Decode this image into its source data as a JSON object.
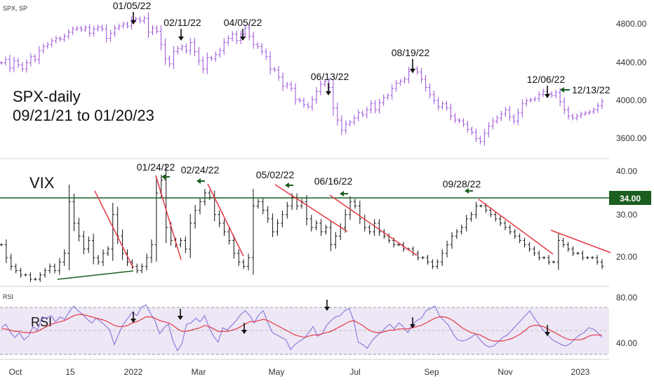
{
  "chart_data": [
    {
      "type": "line",
      "panel": "spx",
      "symbol_tag": "SPX, SP",
      "title_lines": [
        "SPX-daily",
        "09/21/21 to 01/20/23"
      ],
      "y_ticks": [
        "4800.00",
        "4400.00",
        "4000.00",
        "3600.00"
      ],
      "ylim": [
        3450,
        4920
      ],
      "color": "#9c4fd8",
      "series": [
        {
          "values": [
            4360,
            4395,
            4310,
            4380,
            4340,
            4300,
            4360,
            4420,
            4390,
            4480,
            4520,
            4540,
            4575,
            4600,
            4590,
            4620,
            4660,
            4690,
            4700,
            4685,
            4705,
            4650,
            4690,
            4710,
            4690,
            4600,
            4650,
            4700,
            4720,
            4740,
            4720,
            4780,
            4790,
            4770,
            4795,
            4660,
            4700,
            4670,
            4540,
            4400,
            4350,
            4470,
            4500,
            4520,
            4480,
            4560,
            4470,
            4380,
            4300,
            4410,
            4400,
            4440,
            4480,
            4560,
            4600,
            4640,
            4580,
            4640,
            4700,
            4620,
            4540,
            4520,
            4470,
            4420,
            4300,
            4290,
            4220,
            4130,
            4150,
            4110,
            4000,
            3990,
            3950,
            3930,
            4000,
            4080,
            4150,
            4180,
            4120,
            3920,
            3800,
            3700,
            3760,
            3780,
            3820,
            3870,
            3850,
            3900,
            3960,
            3900,
            3970,
            4020,
            4040,
            4110,
            4160,
            4180,
            4200,
            4280,
            4300,
            4270,
            4200,
            4120,
            4050,
            3990,
            3930,
            3960,
            3920,
            3840,
            3800,
            3790,
            3760,
            3710,
            3680,
            3620,
            3590,
            3670,
            3740,
            3790,
            3820,
            3860,
            3900,
            3830,
            3790,
            3870,
            3960,
            3990,
            4000,
            4010,
            4050,
            4080,
            4060,
            4040,
            4070,
            3980,
            3900,
            3840,
            3820,
            3840,
            3860,
            3870,
            3880,
            3900,
            3940,
            3980
          ]
        }
      ]
    },
    {
      "type": "line",
      "panel": "vix",
      "label": "VIX",
      "y_ticks": [
        "40.00",
        "30.00",
        "20.00"
      ],
      "ylim": [
        15,
        43
      ],
      "color": "#111111",
      "reference_line": {
        "value": 34.0,
        "label": "34.00",
        "color": "#1b5e20"
      },
      "series": [
        {
          "values": [
            24,
            21,
            19,
            18,
            17,
            17,
            16,
            16,
            17,
            18,
            19,
            18,
            20,
            22,
            34,
            29,
            26,
            23,
            25,
            21,
            20,
            22,
            23,
            31,
            26,
            22,
            20,
            19,
            18,
            19,
            21,
            24,
            36,
            39,
            28,
            25,
            24,
            25,
            23,
            29,
            32,
            34,
            36,
            35,
            31,
            29,
            27,
            25,
            22,
            20,
            19,
            21,
            33,
            34,
            32,
            30,
            27,
            29,
            31,
            33,
            35,
            33,
            34,
            30,
            28,
            29,
            27,
            28,
            24,
            26,
            28,
            31,
            34,
            33,
            30,
            28,
            27,
            29,
            27,
            26,
            25,
            24,
            24,
            23,
            23,
            22,
            21,
            21,
            20,
            19,
            20,
            22,
            24,
            26,
            27,
            28,
            30,
            31,
            33,
            33,
            32,
            31,
            30,
            29,
            28,
            27,
            26,
            25,
            24,
            23,
            22,
            21,
            21,
            20,
            20,
            25,
            24,
            23,
            22,
            22,
            21,
            21,
            21,
            20,
            19
          ]
        }
      ]
    },
    {
      "type": "line",
      "panel": "rsi",
      "label": "RSI",
      "panel_tag": "RSI",
      "y_ticks": [
        "80.00",
        "40.00"
      ],
      "ylim": [
        27,
        84
      ],
      "band": [
        30,
        70
      ],
      "colors": {
        "rsi": "#7e6bd6",
        "signal": "#e53945",
        "band": "#ede7f6"
      },
      "series": [
        {
          "values": [
            52,
            55,
            48,
            44,
            48,
            42,
            45,
            53,
            50,
            61,
            60,
            62,
            57,
            61,
            59,
            65,
            70,
            66,
            63,
            59,
            56,
            60,
            57,
            54,
            50,
            38,
            47,
            55,
            60,
            65,
            62,
            69,
            71,
            64,
            58,
            47,
            52,
            55,
            41,
            33,
            39,
            55,
            56,
            60,
            57,
            62,
            52,
            45,
            40,
            52,
            50,
            54,
            58,
            63,
            66,
            62,
            56,
            63,
            66,
            56,
            48,
            46,
            44,
            42,
            34,
            38,
            41,
            43,
            48,
            53,
            45,
            47,
            54,
            58,
            61,
            62,
            66,
            68,
            58,
            40,
            38,
            35,
            41,
            45,
            48,
            52,
            55,
            51,
            56,
            53,
            48,
            55,
            58,
            60,
            66,
            68,
            70,
            62,
            58,
            54,
            47,
            42,
            41,
            42,
            44,
            47,
            42,
            38,
            36,
            37,
            40,
            44,
            46,
            50,
            54,
            58,
            62,
            66,
            60,
            55,
            50,
            46,
            42,
            40,
            38,
            37,
            39,
            43,
            46,
            48,
            52,
            51,
            48,
            44
          ]
        },
        {
          "values": [
            51,
            51,
            50,
            49,
            49,
            48,
            48,
            48,
            49,
            51,
            53,
            55,
            56,
            57,
            58,
            60,
            62,
            63,
            63,
            62,
            61,
            60,
            59,
            58,
            56,
            54,
            53,
            53,
            54,
            56,
            57,
            59,
            61,
            61,
            60,
            58,
            57,
            56,
            54,
            51,
            49,
            49,
            50,
            51,
            52,
            54,
            53,
            51,
            49,
            49,
            49,
            50,
            51,
            53,
            55,
            57,
            57,
            58,
            59,
            58,
            56,
            54,
            52,
            50,
            48,
            46,
            45,
            44,
            45,
            46,
            46,
            47,
            48,
            49,
            51,
            53,
            55,
            57,
            58,
            56,
            54,
            51,
            49,
            48,
            48,
            49,
            50,
            50,
            51,
            51,
            51,
            52,
            53,
            54,
            56,
            58,
            60,
            61,
            61,
            60,
            58,
            55,
            52,
            50,
            48,
            47,
            46,
            44,
            42,
            41,
            41,
            41,
            42,
            43,
            45,
            47,
            50,
            53,
            54,
            54,
            53,
            51,
            49,
            47,
            45,
            43,
            42,
            42,
            42,
            43,
            45,
            46,
            46,
            46
          ]
        }
      ]
    }
  ],
  "x_ticks": [
    "Oct",
    "15",
    "2022",
    "Mar",
    "May",
    "Jul",
    "Sep",
    "Nov",
    "2023"
  ],
  "annotations": {
    "spx_dates": [
      "01/05/22",
      "02/11/22",
      "04/05/22",
      "06/13/22",
      "08/19/22",
      "12/06/22",
      "12/13/22"
    ],
    "vix_dates": [
      "01/24/22",
      "02/24/22",
      "05/02/22",
      "06/16/22",
      "09/28/22"
    ]
  }
}
